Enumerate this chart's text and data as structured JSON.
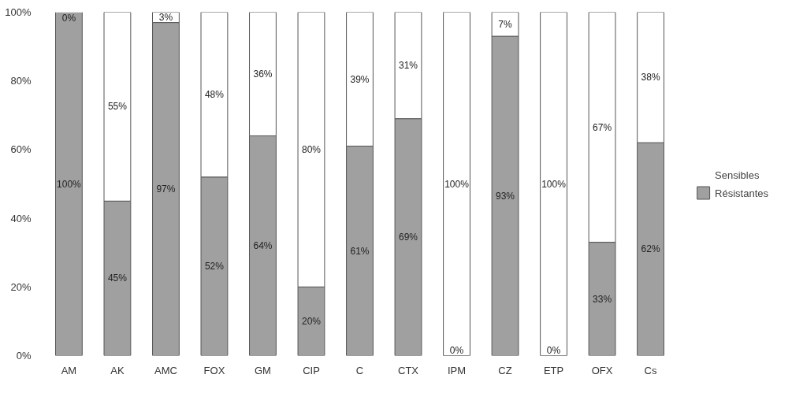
{
  "chart_data": {
    "type": "bar",
    "stacked": true,
    "categories": [
      "AM",
      "AK",
      "AMC",
      "FOX",
      "GM",
      "CIP",
      "C",
      "CTX",
      "IPM",
      "CZ",
      "ETP",
      "OFX",
      "Cs"
    ],
    "series": [
      {
        "name": "Résistantes",
        "color": "#a0a0a0",
        "values": [
          100,
          45,
          97,
          52,
          64,
          20,
          61,
          69,
          0,
          93,
          0,
          33,
          62
        ],
        "value_labels": [
          "100%",
          "45%",
          "97%",
          "52%",
          "64%",
          "20%",
          "61%",
          "69%",
          "0%",
          "93%",
          "0%",
          "33%",
          "62%"
        ]
      },
      {
        "name": "Sensibles",
        "color": "#ffffff",
        "values": [
          0,
          55,
          3,
          48,
          36,
          80,
          39,
          31,
          100,
          7,
          100,
          67,
          38
        ],
        "value_labels": [
          "0%",
          "55%",
          "3%",
          "48%",
          "36%",
          "80%",
          "39%",
          "31%",
          "100%",
          "7%",
          "100%",
          "67%",
          "38%"
        ]
      }
    ],
    "ylim": [
      0,
      100
    ],
    "yticks": [
      {
        "value": 0,
        "label": "0%"
      },
      {
        "value": 20,
        "label": "20%"
      },
      {
        "value": 40,
        "label": "40%"
      },
      {
        "value": 60,
        "label": "60%"
      },
      {
        "value": 80,
        "label": "80%"
      },
      {
        "value": 100,
        "label": "100%"
      }
    ],
    "grid": false,
    "legend": "right"
  }
}
